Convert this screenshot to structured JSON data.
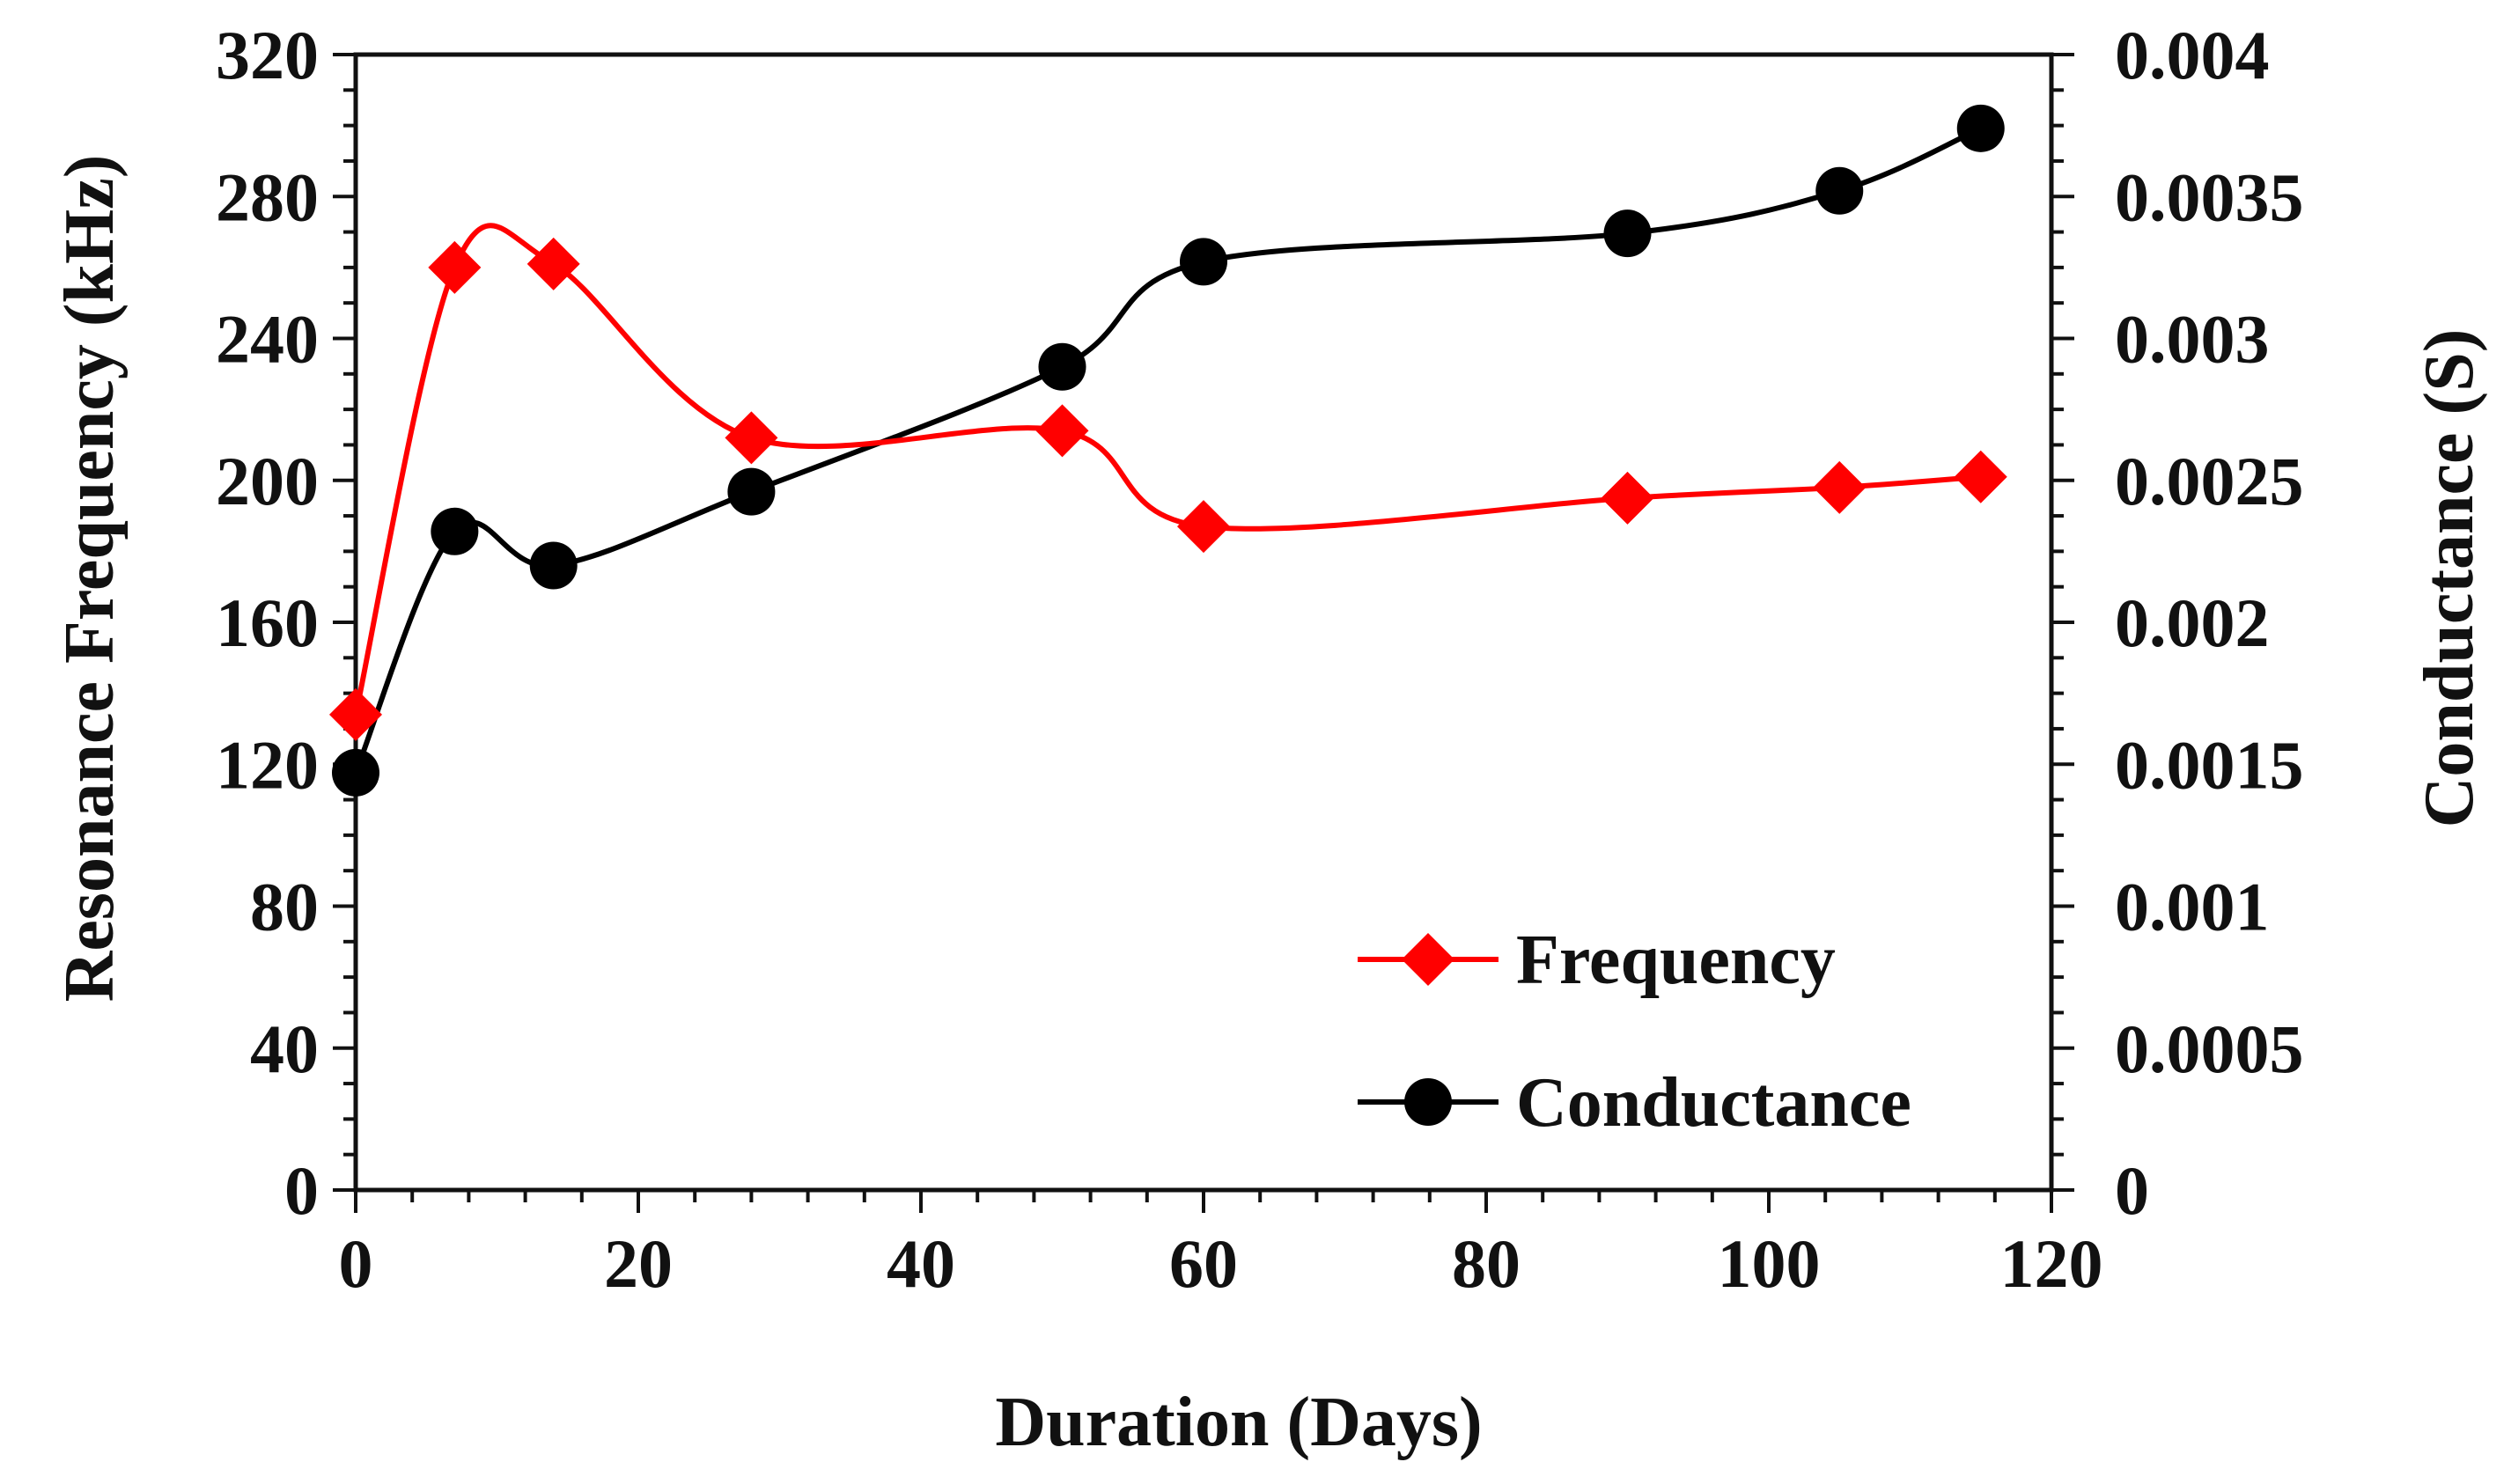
{
  "chart_data": {
    "type": "line",
    "title": "",
    "xlabel": "Duration (Days)",
    "ylabel": "Resonance Frequency (kHz)",
    "y2label": "Conductance (S)",
    "xlim": [
      0,
      120
    ],
    "ylim": [
      0,
      320
    ],
    "y2lim": [
      0,
      0.004
    ],
    "x_ticks": [
      "0",
      "20",
      "40",
      "60",
      "80",
      "100",
      "120"
    ],
    "y_ticks": [
      "0",
      "40",
      "80",
      "120",
      "160",
      "200",
      "240",
      "280",
      "320"
    ],
    "y2_ticks": [
      "0",
      "0.0005",
      "0.001",
      "0.0015",
      "0.002",
      "0.0025",
      "0.003",
      "0.0035",
      "0.004"
    ],
    "legend_position": "bottom-right",
    "grid": false,
    "series": [
      {
        "name": "Frequency",
        "axis": "left",
        "color": "#ff0000",
        "marker": "diamond",
        "x": [
          0,
          7,
          14,
          28,
          50,
          60,
          90,
          105,
          115
        ],
        "values": [
          134,
          260,
          261,
          212,
          214,
          187,
          195,
          198,
          201
        ]
      },
      {
        "name": "Conductance",
        "axis": "right",
        "color": "#000000",
        "marker": "circle",
        "x": [
          0,
          7,
          14,
          28,
          50,
          60,
          90,
          105,
          115
        ],
        "values": [
          0.00147,
          0.00232,
          0.0022,
          0.00246,
          0.0029,
          0.00327,
          0.00337,
          0.00352,
          0.00374
        ]
      }
    ]
  }
}
